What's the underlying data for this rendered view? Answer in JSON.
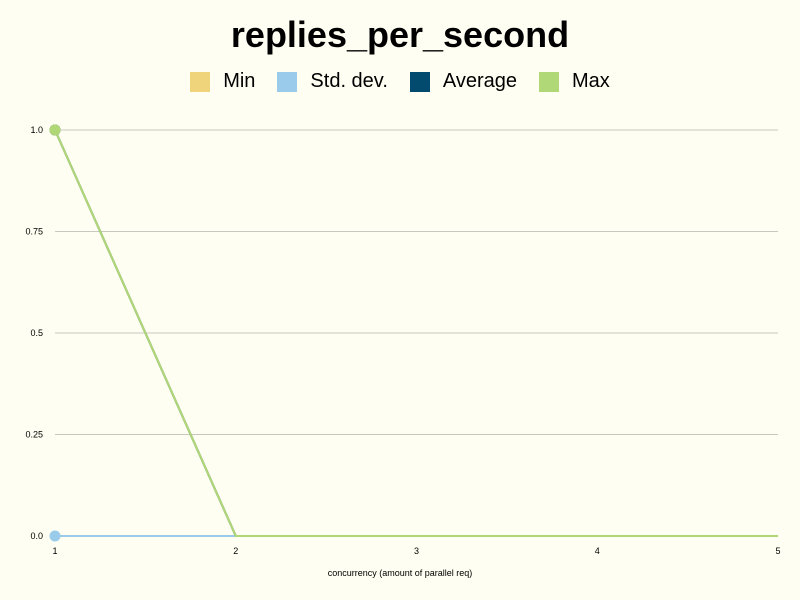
{
  "chart_data": {
    "type": "line",
    "title": "replies_per_second",
    "xlabel": "concurrency (amount of parallel req)",
    "ylabel": "",
    "x": [
      1,
      2,
      3,
      4,
      5
    ],
    "x_tick_labels": [
      "1",
      "2",
      "3",
      "4",
      "5"
    ],
    "y_tick_values": [
      0,
      0.25,
      0.5,
      0.75,
      1.0
    ],
    "y_tick_labels": [
      "0.0",
      "0.25",
      "0.5",
      "0.75",
      "1.0"
    ],
    "xlim": [
      1,
      5
    ],
    "ylim": [
      0,
      1
    ],
    "grid": "horizontal",
    "legend_position": "top-center",
    "series": [
      {
        "name": "Min",
        "color": "#f0d47c",
        "values": [
          1,
          0,
          0,
          0,
          0
        ]
      },
      {
        "name": "Std. dev.",
        "color": "#9acbea",
        "values": [
          0,
          0,
          0,
          0,
          0
        ]
      },
      {
        "name": "Average",
        "color": "#024a6e",
        "values": [
          1,
          0,
          0,
          0,
          0
        ]
      },
      {
        "name": "Max",
        "color": "#b1d877",
        "values": [
          1,
          0,
          0,
          0,
          0
        ]
      }
    ]
  }
}
